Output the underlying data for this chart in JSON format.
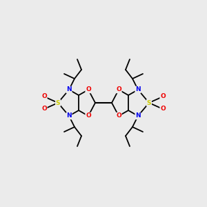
{
  "bg_color": "#ebebeb",
  "atom_colors": {
    "N": "#0000ee",
    "O": "#ee0000",
    "S": "#cccc00",
    "C": "#000000"
  },
  "bond_color": "#000000",
  "font_size_atom": 6.5,
  "fig_size": [
    3.0,
    3.0
  ],
  "dpi": 100
}
